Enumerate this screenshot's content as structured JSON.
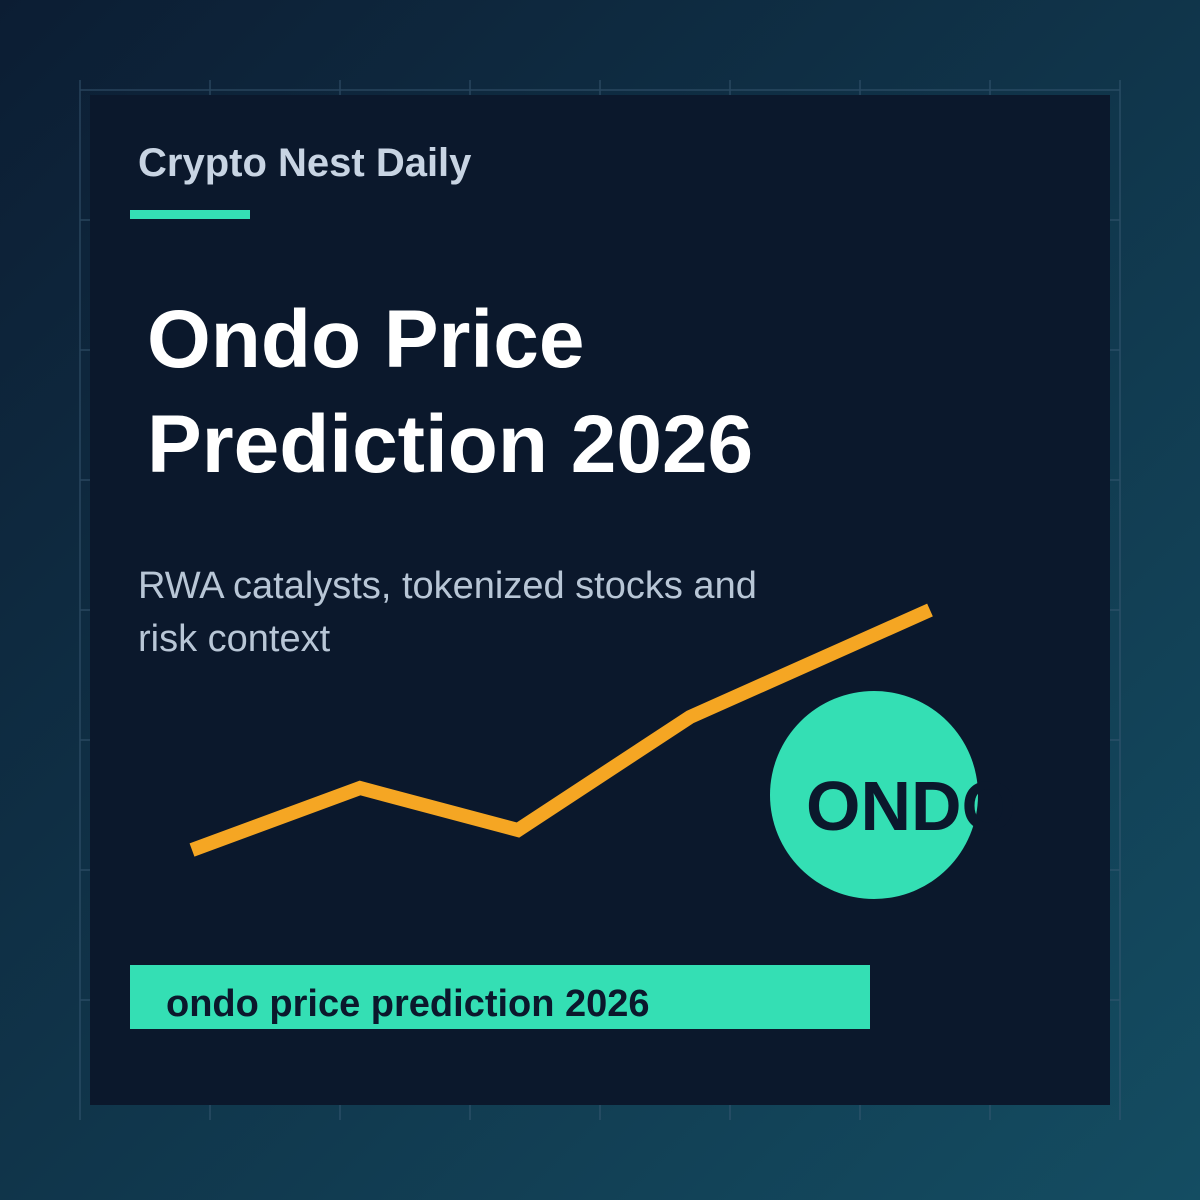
{
  "brand": "Crypto Nest Daily",
  "title": {
    "lines": [
      "Ondo Price",
      "Prediction 2026"
    ]
  },
  "subtitle": {
    "lines": [
      "RWA catalysts, tokenized stocks and",
      "risk context"
    ]
  },
  "badge": "ONDO",
  "keyword": "ondo price prediction 2026"
}
